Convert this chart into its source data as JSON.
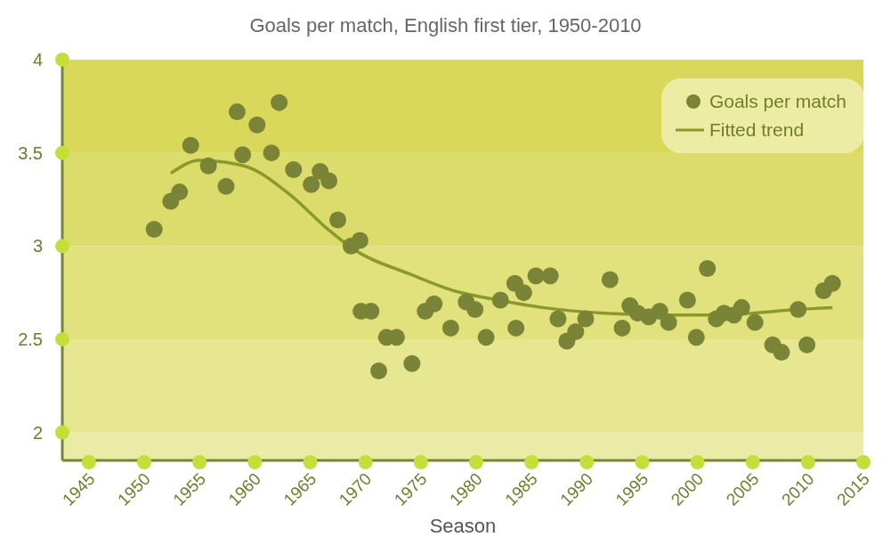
{
  "chart_data": {
    "type": "scatter",
    "title": "Goals per match, English first tier, 1950-2010",
    "xlabel": "Season",
    "xlim": [
      1942.6,
      2015
    ],
    "xticks": [
      1945,
      1950,
      1955,
      1960,
      1965,
      1970,
      1975,
      1980,
      1985,
      1990,
      1995,
      2000,
      2005,
      2010,
      2015
    ],
    "ylim": [
      1.85,
      4
    ],
    "yticks": [
      2,
      2.5,
      3,
      3.5,
      4
    ],
    "grid": false,
    "legend": "top right",
    "bands": [
      {
        "axis": "y",
        "from": 1.85,
        "to": 2,
        "color": "#ebeba8"
      },
      {
        "axis": "y",
        "from": 2,
        "to": 2.5,
        "color": "#e7e791"
      },
      {
        "axis": "y",
        "from": 2.5,
        "to": 3,
        "color": "#e1e17e"
      },
      {
        "axis": "y",
        "from": 3,
        "to": 3.5,
        "color": "#dcdc6c"
      },
      {
        "axis": "y",
        "from": 3.5,
        "to": 4,
        "color": "#d9d85a"
      }
    ],
    "series": [
      {
        "name": "Goals per match",
        "marker": "circle",
        "color": "#7a8436",
        "x": [
          1950.9,
          1952.4,
          1953.2,
          1954.2,
          1955.8,
          1957.4,
          1958.4,
          1958.9,
          1960.2,
          1961.5,
          1962.2,
          1963.5,
          1965.1,
          1965.9,
          1966.7,
          1967.5,
          1968.7,
          1969.5,
          1969.6,
          1970.5,
          1971.2,
          1971.9,
          1972.8,
          1974.2,
          1975.4,
          1976.2,
          1977.7,
          1979.1,
          1979.9,
          1980.9,
          1982.2,
          1983.5,
          1983.6,
          1984.3,
          1985.4,
          1986.7,
          1987.4,
          1988.2,
          1989.0,
          1989.9,
          1992.1,
          1993.2,
          1993.9,
          1994.6,
          1995.6,
          1996.6,
          1997.4,
          1999.1,
          1999.9,
          2000.9,
          2001.7,
          2002.4,
          2003.3,
          2004.0,
          2005.2,
          2006.8,
          2007.6,
          2009.1,
          2009.9,
          2011.4,
          2012.2
        ],
        "values": [
          3.09,
          3.24,
          3.29,
          3.54,
          3.43,
          3.32,
          3.72,
          3.49,
          3.65,
          3.5,
          3.77,
          3.41,
          3.33,
          3.4,
          3.35,
          3.14,
          3.0,
          3.03,
          2.65,
          2.65,
          2.33,
          2.51,
          2.51,
          2.37,
          2.65,
          2.69,
          2.56,
          2.7,
          2.66,
          2.51,
          2.71,
          2.8,
          2.56,
          2.75,
          2.84,
          2.84,
          2.61,
          2.49,
          2.54,
          2.61,
          2.82,
          2.56,
          2.68,
          2.64,
          2.62,
          2.65,
          2.59,
          2.71,
          2.51,
          2.88,
          2.61,
          2.64,
          2.63,
          2.67,
          2.59,
          2.47,
          2.43,
          2.66,
          2.47,
          2.76,
          2.8
        ]
      },
      {
        "name": "Fitted trend",
        "type": "line",
        "marker": "none",
        "line_style": "solid",
        "color": "#8a9a2a",
        "x": [
          1952.4,
          1955,
          1959,
          1963.3,
          1966.6,
          1969,
          1974,
          1978,
          1982,
          1986,
          1991.6,
          1997,
          2001,
          2005,
          2009,
          2012.2
        ],
        "values": [
          3.39,
          3.46,
          3.43,
          3.27,
          3.09,
          2.98,
          2.85,
          2.76,
          2.71,
          2.67,
          2.64,
          2.63,
          2.63,
          2.64,
          2.66,
          2.67
        ]
      }
    ]
  }
}
